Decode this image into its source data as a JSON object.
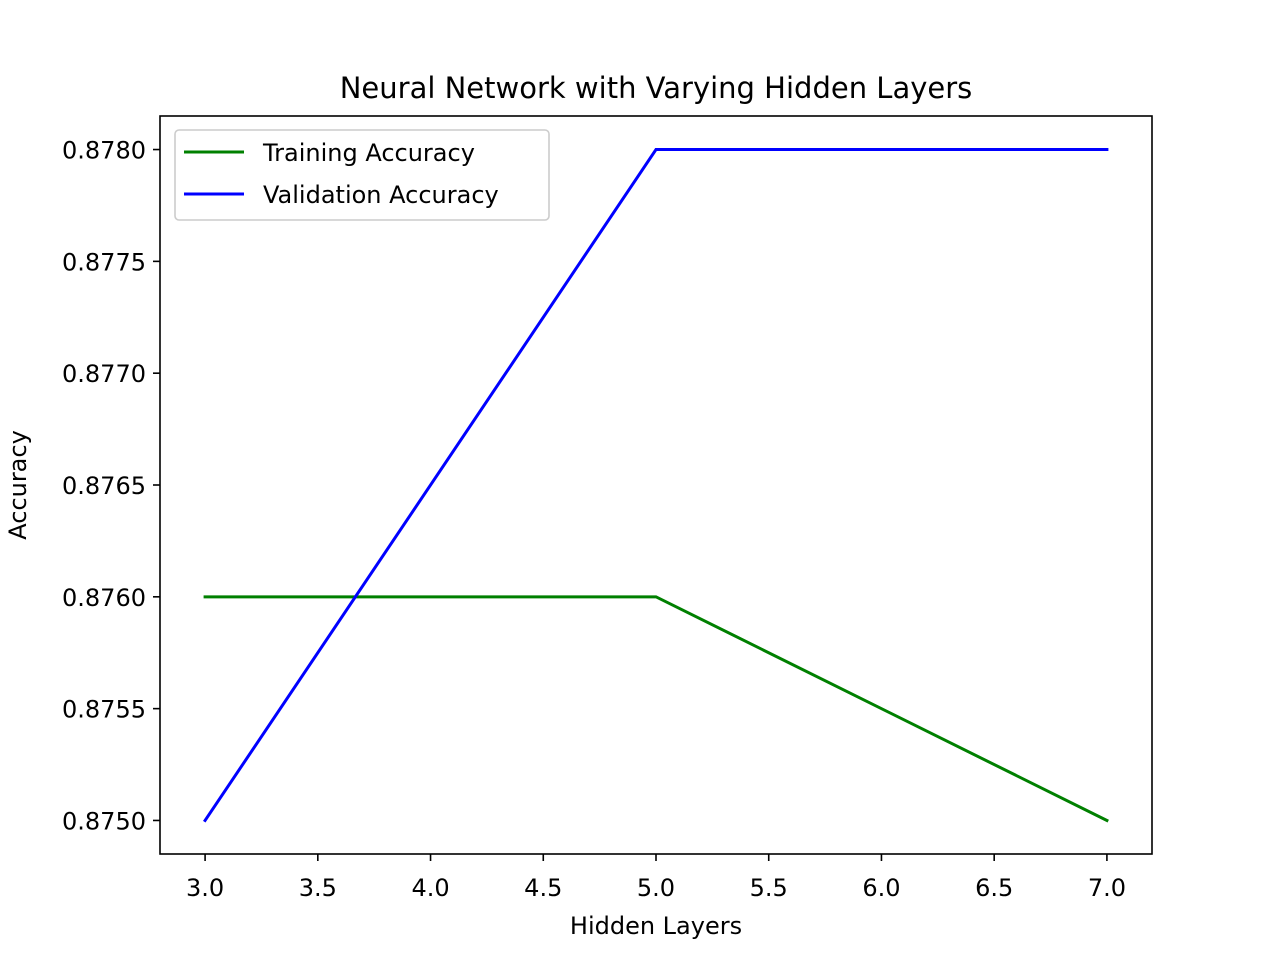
{
  "chart_data": {
    "type": "line",
    "title": "Neural Network with Varying Hidden Layers",
    "xlabel": "Hidden Layers",
    "ylabel": "Accuracy",
    "x": [
      3,
      5,
      7
    ],
    "series": [
      {
        "name": "Training Accuracy",
        "color": "#008000",
        "values": [
          0.876,
          0.876,
          0.875
        ]
      },
      {
        "name": "Validation Accuracy",
        "color": "#0000ff",
        "values": [
          0.875,
          0.878,
          0.878
        ]
      }
    ],
    "xlim": [
      2.8,
      7.2
    ],
    "ylim": [
      0.87485,
      0.87815
    ],
    "xticks": [
      3.0,
      3.5,
      4.0,
      4.5,
      5.0,
      5.5,
      6.0,
      6.5,
      7.0
    ],
    "xtick_labels": [
      "3.0",
      "3.5",
      "4.0",
      "4.5",
      "5.0",
      "5.5",
      "6.0",
      "6.5",
      "7.0"
    ],
    "yticks": [
      0.875,
      0.8755,
      0.876,
      0.8765,
      0.877,
      0.8775,
      0.878
    ],
    "ytick_labels": [
      "0.8750",
      "0.8755",
      "0.8760",
      "0.8765",
      "0.8770",
      "0.8775",
      "0.8780"
    ],
    "grid": false,
    "legend_position": "top-left"
  }
}
